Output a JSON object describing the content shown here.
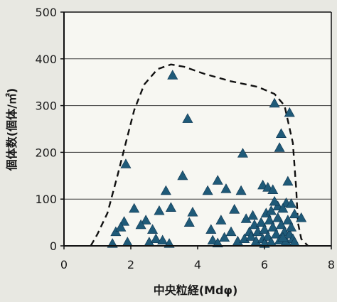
{
  "chart_data": {
    "type": "scatter",
    "xlabel": "中央粒経(Mdφ)",
    "ylabel": "個体数(個体/㎡)",
    "xlim": [
      0,
      8
    ],
    "ylim": [
      0,
      500
    ],
    "x_ticks": [
      "0",
      "2",
      "4",
      "6",
      "8"
    ],
    "y_ticks": [
      "0",
      "100",
      "200",
      "300",
      "400",
      "500"
    ],
    "grid": "horizontal",
    "marker": "triangle",
    "marker_color": "#1f5a78",
    "envelope_style": "dashed",
    "envelope": [
      {
        "x": 0.8,
        "y": 0
      },
      {
        "x": 1.0,
        "y": 25
      },
      {
        "x": 1.3,
        "y": 70
      },
      {
        "x": 1.6,
        "y": 150
      },
      {
        "x": 1.85,
        "y": 220
      },
      {
        "x": 2.1,
        "y": 290
      },
      {
        "x": 2.4,
        "y": 345
      },
      {
        "x": 2.8,
        "y": 378
      },
      {
        "x": 3.2,
        "y": 388
      },
      {
        "x": 3.6,
        "y": 383
      },
      {
        "x": 4.2,
        "y": 368
      },
      {
        "x": 5.0,
        "y": 352
      },
      {
        "x": 5.8,
        "y": 340
      },
      {
        "x": 6.3,
        "y": 325
      },
      {
        "x": 6.6,
        "y": 300
      },
      {
        "x": 6.85,
        "y": 220
      },
      {
        "x": 6.95,
        "y": 120
      },
      {
        "x": 7.0,
        "y": 50
      },
      {
        "x": 7.1,
        "y": 15
      },
      {
        "x": 7.3,
        "y": 0
      }
    ],
    "points": [
      {
        "x": 3.25,
        "y": 365
      },
      {
        "x": 3.7,
        "y": 272
      },
      {
        "x": 6.3,
        "y": 305
      },
      {
        "x": 6.75,
        "y": 285
      },
      {
        "x": 6.5,
        "y": 240
      },
      {
        "x": 1.85,
        "y": 175
      },
      {
        "x": 5.35,
        "y": 198
      },
      {
        "x": 6.45,
        "y": 210
      },
      {
        "x": 3.55,
        "y": 150
      },
      {
        "x": 4.6,
        "y": 140
      },
      {
        "x": 6.7,
        "y": 138
      },
      {
        "x": 3.05,
        "y": 118
      },
      {
        "x": 4.3,
        "y": 118
      },
      {
        "x": 4.85,
        "y": 122
      },
      {
        "x": 5.3,
        "y": 118
      },
      {
        "x": 5.95,
        "y": 130
      },
      {
        "x": 6.1,
        "y": 125
      },
      {
        "x": 6.25,
        "y": 120
      },
      {
        "x": 2.1,
        "y": 80
      },
      {
        "x": 2.85,
        "y": 75
      },
      {
        "x": 3.2,
        "y": 82
      },
      {
        "x": 3.85,
        "y": 72
      },
      {
        "x": 5.1,
        "y": 78
      },
      {
        "x": 6.65,
        "y": 92
      },
      {
        "x": 6.8,
        "y": 90
      },
      {
        "x": 1.8,
        "y": 52
      },
      {
        "x": 2.45,
        "y": 55
      },
      {
        "x": 3.75,
        "y": 50
      },
      {
        "x": 4.7,
        "y": 55
      },
      {
        "x": 5.45,
        "y": 58
      },
      {
        "x": 6.9,
        "y": 68
      },
      {
        "x": 6.4,
        "y": 85
      },
      {
        "x": 1.55,
        "y": 30
      },
      {
        "x": 1.7,
        "y": 40
      },
      {
        "x": 2.3,
        "y": 45
      },
      {
        "x": 2.65,
        "y": 35
      },
      {
        "x": 4.4,
        "y": 35
      },
      {
        "x": 5.0,
        "y": 30
      },
      {
        "x": 5.55,
        "y": 30
      },
      {
        "x": 7.1,
        "y": 60
      },
      {
        "x": 1.45,
        "y": 5
      },
      {
        "x": 1.9,
        "y": 8
      },
      {
        "x": 2.55,
        "y": 8
      },
      {
        "x": 2.75,
        "y": 15
      },
      {
        "x": 2.95,
        "y": 12
      },
      {
        "x": 3.15,
        "y": 5
      },
      {
        "x": 4.45,
        "y": 12
      },
      {
        "x": 4.6,
        "y": 6
      },
      {
        "x": 4.8,
        "y": 18
      },
      {
        "x": 5.2,
        "y": 10
      },
      {
        "x": 5.4,
        "y": 15
      },
      {
        "x": 5.6,
        "y": 20
      },
      {
        "x": 5.7,
        "y": 45
      },
      {
        "x": 5.75,
        "y": 10
      },
      {
        "x": 5.8,
        "y": 30
      },
      {
        "x": 5.9,
        "y": 50
      },
      {
        "x": 5.95,
        "y": 15
      },
      {
        "x": 6.0,
        "y": 35
      },
      {
        "x": 6.05,
        "y": 70
      },
      {
        "x": 6.1,
        "y": 20
      },
      {
        "x": 6.15,
        "y": 55
      },
      {
        "x": 6.2,
        "y": 8
      },
      {
        "x": 6.25,
        "y": 40
      },
      {
        "x": 6.3,
        "y": 95
      },
      {
        "x": 6.35,
        "y": 25
      },
      {
        "x": 6.4,
        "y": 60
      },
      {
        "x": 6.45,
        "y": 12
      },
      {
        "x": 6.5,
        "y": 45
      },
      {
        "x": 6.55,
        "y": 80
      },
      {
        "x": 6.6,
        "y": 30
      },
      {
        "x": 6.65,
        "y": 10
      },
      {
        "x": 6.7,
        "y": 55
      },
      {
        "x": 6.75,
        "y": 25
      },
      {
        "x": 6.8,
        "y": 40
      },
      {
        "x": 6.85,
        "y": 15
      },
      {
        "x": 6.9,
        "y": 8
      },
      {
        "x": 5.65,
        "y": 65
      },
      {
        "x": 6.0,
        "y": 5
      },
      {
        "x": 6.2,
        "y": 75
      },
      {
        "x": 6.55,
        "y": 18
      }
    ]
  }
}
